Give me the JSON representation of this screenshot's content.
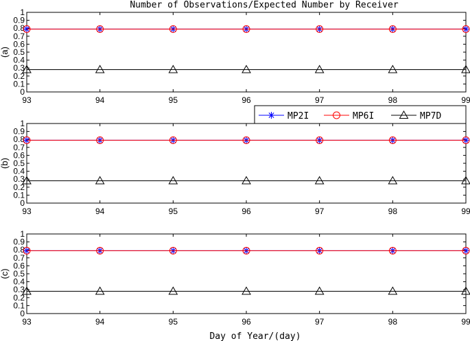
{
  "figure": {
    "title": "Number of Observations/Expected Number by Receiver",
    "xlabel": "Day of Year/(day)"
  },
  "legend": {
    "entries": [
      {
        "name": "MP2I",
        "color": "#0000ff",
        "marker": "asterisk"
      },
      {
        "name": "MP6I",
        "color": "#ff0000",
        "marker": "circle"
      },
      {
        "name": "MP7D",
        "color": "#000000",
        "marker": "triangle"
      }
    ],
    "placement": "top-right of panel (b)"
  },
  "chart_data": [
    {
      "type": "line",
      "ylabel": "(a)",
      "x": [
        93,
        94,
        95,
        96,
        97,
        98,
        99
      ],
      "xlim": [
        93,
        99
      ],
      "ylim": [
        0,
        1
      ],
      "xticks": [
        "93",
        "94",
        "95",
        "96",
        "97",
        "98",
        "99"
      ],
      "yticks": [
        "0",
        "0.1",
        "0.2",
        "0.3",
        "0.4",
        "0.5",
        "0.6",
        "0.7",
        "0.8",
        "0.9",
        "1"
      ],
      "series": [
        {
          "name": "MP2I",
          "color": "#0000ff",
          "marker": "asterisk",
          "values": [
            0.79,
            0.79,
            0.79,
            0.79,
            0.79,
            0.79,
            0.79
          ]
        },
        {
          "name": "MP6I",
          "color": "#ff0000",
          "marker": "circle",
          "values": [
            0.79,
            0.79,
            0.79,
            0.79,
            0.79,
            0.79,
            0.79
          ]
        },
        {
          "name": "MP7D",
          "color": "#000000",
          "marker": "triangle",
          "values": [
            0.28,
            0.28,
            0.28,
            0.28,
            0.28,
            0.28,
            0.28
          ]
        }
      ]
    },
    {
      "type": "line",
      "ylabel": "(b)",
      "x": [
        93,
        94,
        95,
        96,
        97,
        98,
        99
      ],
      "xlim": [
        93,
        99
      ],
      "ylim": [
        0,
        1
      ],
      "xticks": [
        "93",
        "94",
        "95",
        "96",
        "97",
        "98",
        "99"
      ],
      "yticks": [
        "0",
        "0.1",
        "0.2",
        "0.3",
        "0.4",
        "0.5",
        "0.6",
        "0.7",
        "0.8",
        "0.9",
        "1"
      ],
      "series": [
        {
          "name": "MP2I",
          "color": "#0000ff",
          "marker": "asterisk",
          "values": [
            0.79,
            0.79,
            0.79,
            0.79,
            0.79,
            0.79,
            0.79
          ]
        },
        {
          "name": "MP6I",
          "color": "#ff0000",
          "marker": "circle",
          "values": [
            0.79,
            0.79,
            0.79,
            0.79,
            0.79,
            0.79,
            0.79
          ]
        },
        {
          "name": "MP7D",
          "color": "#000000",
          "marker": "triangle",
          "values": [
            0.28,
            0.28,
            0.28,
            0.28,
            0.28,
            0.28,
            0.28
          ]
        }
      ]
    },
    {
      "type": "line",
      "ylabel": "(c)",
      "x": [
        93,
        94,
        95,
        96,
        97,
        98,
        99
      ],
      "xlim": [
        93,
        99
      ],
      "ylim": [
        0,
        1
      ],
      "xticks": [
        "93",
        "94",
        "95",
        "96",
        "97",
        "98",
        "99"
      ],
      "yticks": [
        "0",
        "0.1",
        "0.2",
        "0.3",
        "0.4",
        "0.5",
        "0.6",
        "0.7",
        "0.8",
        "0.9",
        "1"
      ],
      "series": [
        {
          "name": "MP2I",
          "color": "#0000ff",
          "marker": "asterisk",
          "values": [
            0.79,
            0.79,
            0.79,
            0.79,
            0.79,
            0.79,
            0.79
          ]
        },
        {
          "name": "MP6I",
          "color": "#ff0000",
          "marker": "circle",
          "values": [
            0.79,
            0.79,
            0.79,
            0.79,
            0.79,
            0.79,
            0.79
          ]
        },
        {
          "name": "MP7D",
          "color": "#000000",
          "marker": "triangle",
          "values": [
            0.28,
            0.28,
            0.28,
            0.28,
            0.28,
            0.28,
            0.28
          ]
        }
      ]
    }
  ]
}
